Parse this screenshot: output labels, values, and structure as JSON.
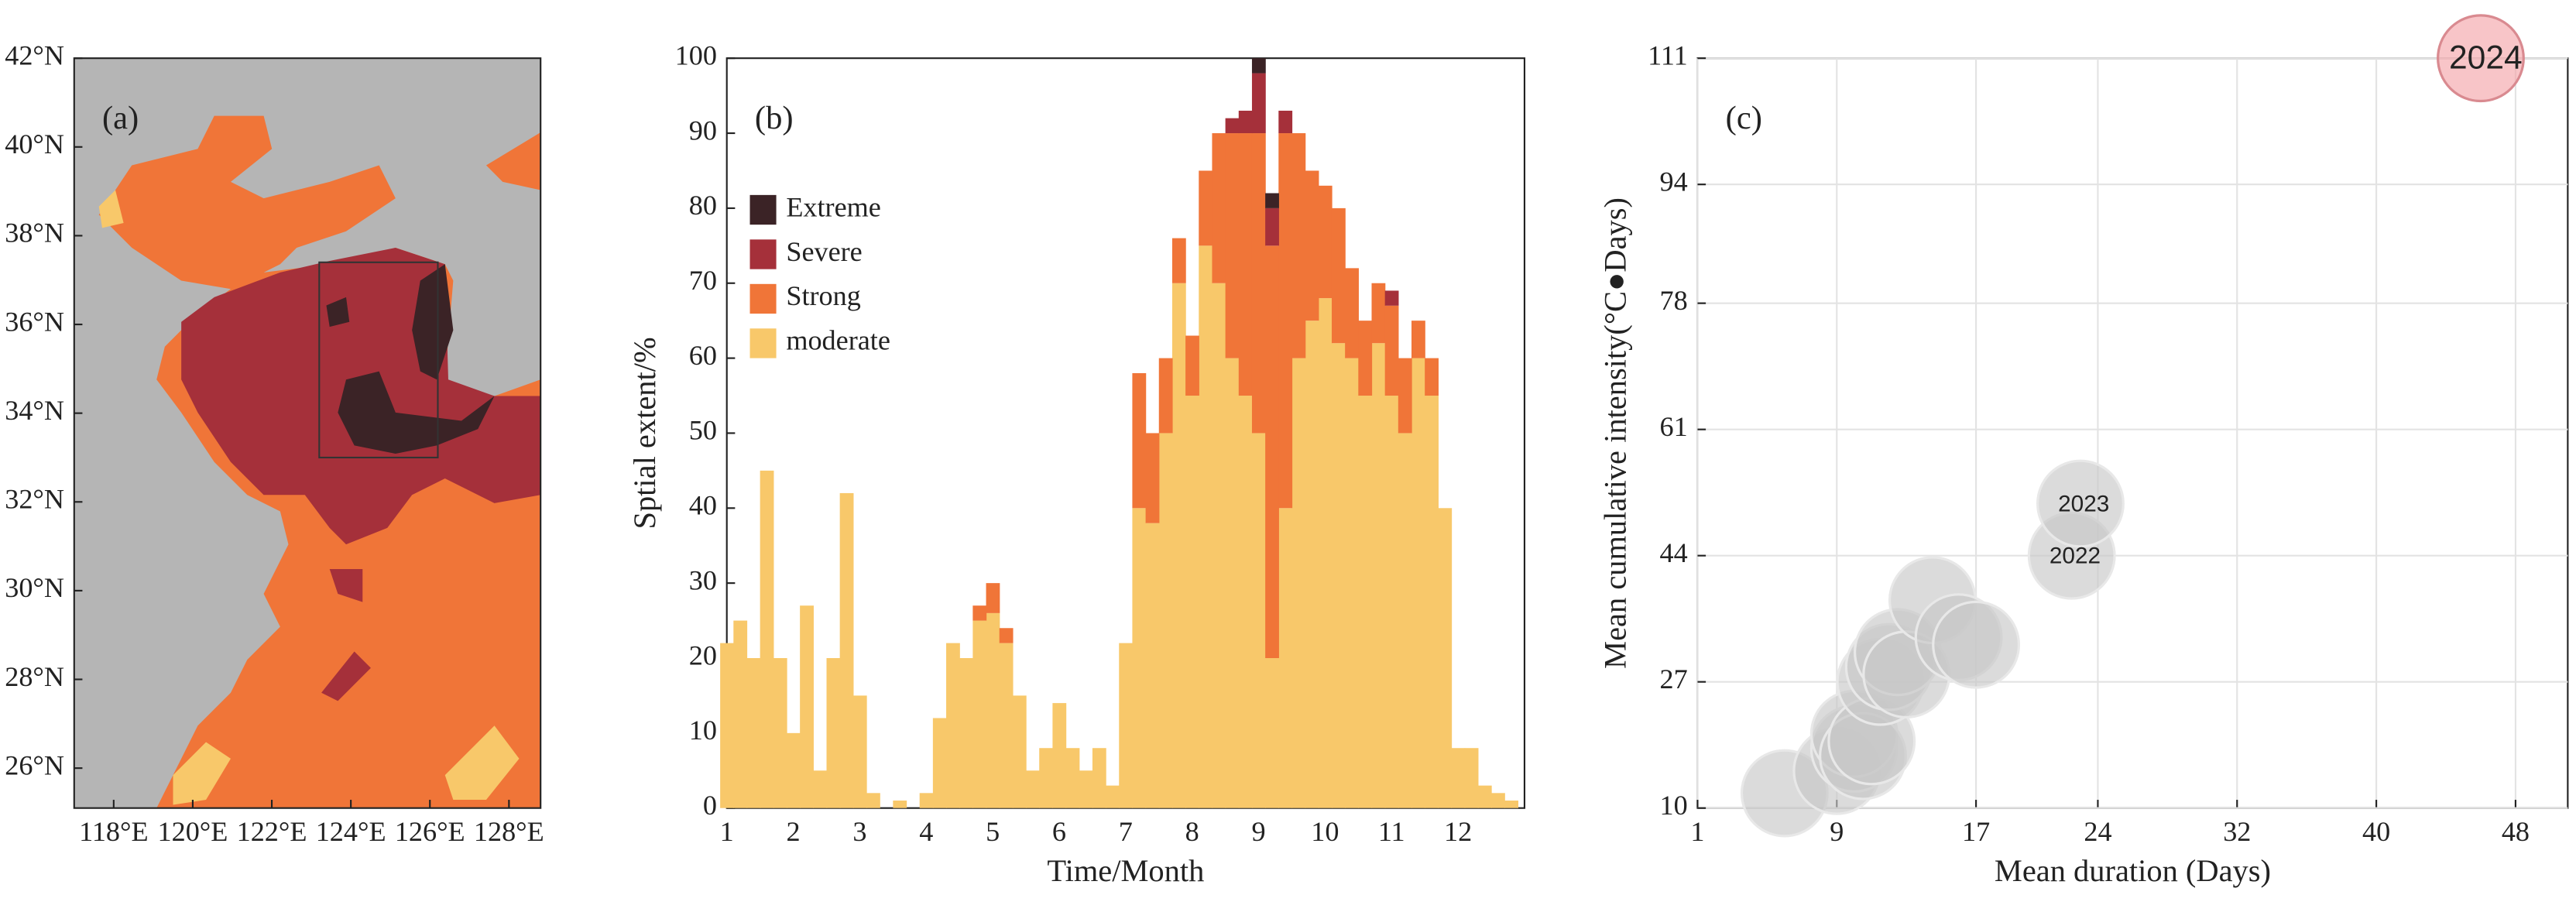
{
  "chart_data": [
    {
      "type": "map",
      "panel_label": "(a)",
      "xlim": [
        117,
        128.8
      ],
      "ylim": [
        25.1,
        42
      ],
      "xticks": [
        {
          "value": 118,
          "label": "118°E"
        },
        {
          "value": 120,
          "label": "120°E"
        },
        {
          "value": 122,
          "label": "122°E"
        },
        {
          "value": 124,
          "label": "124°E"
        },
        {
          "value": 126,
          "label": "126°E"
        },
        {
          "value": 128,
          "label": "128°E"
        }
      ],
      "yticks": [
        {
          "value": 26,
          "label": "26°N"
        },
        {
          "value": 28,
          "label": "28°N"
        },
        {
          "value": 30,
          "label": "30°N"
        },
        {
          "value": 32,
          "label": "32°N"
        },
        {
          "value": 34,
          "label": "34°N"
        },
        {
          "value": 36,
          "label": "36°N"
        },
        {
          "value": 38,
          "label": "38°N"
        },
        {
          "value": 40,
          "label": "40°N"
        },
        {
          "value": 42,
          "label": "42°N"
        }
      ],
      "box": {
        "x": [
          123.2,
          126.2
        ],
        "y": [
          33,
          37.4
        ]
      }
    },
    {
      "type": "bar",
      "panel_label": "(b)",
      "stacked": true,
      "xlabel": "Time/Month",
      "ylabel": "Sptial extent/%",
      "x": [
        1.0,
        1.2,
        1.4,
        1.6,
        1.8,
        2.0,
        2.2,
        2.4,
        2.6,
        2.8,
        3.0,
        3.2,
        3.4,
        3.6,
        3.8,
        4.0,
        4.2,
        4.4,
        4.6,
        4.8,
        5.0,
        5.2,
        5.4,
        5.6,
        5.8,
        6.0,
        6.2,
        6.4,
        6.6,
        6.8,
        7.0,
        7.2,
        7.4,
        7.6,
        7.8,
        8.0,
        8.2,
        8.4,
        8.6,
        8.8,
        9.0,
        9.2,
        9.4,
        9.6,
        9.8,
        10.0,
        10.2,
        10.4,
        10.6,
        10.8,
        11.0,
        11.2,
        11.4,
        11.6,
        11.8,
        12.0,
        12.2,
        12.4,
        12.6,
        12.8
      ],
      "series": [
        {
          "name": "moderate",
          "color": "#f8c86a",
          "values": [
            22,
            25,
            20,
            45,
            20,
            10,
            27,
            5,
            20,
            42,
            15,
            2,
            0,
            1,
            0,
            2,
            12,
            22,
            20,
            25,
            26,
            22,
            15,
            5,
            8,
            14,
            8,
            5,
            8,
            3,
            22,
            40,
            38,
            50,
            70,
            55,
            75,
            70,
            60,
            55,
            50,
            20,
            40,
            60,
            65,
            68,
            62,
            60,
            55,
            62,
            55,
            50,
            60,
            55,
            40,
            8,
            8,
            3,
            2,
            1
          ]
        },
        {
          "name": "Strong",
          "color": "#f07538",
          "values": [
            0,
            0,
            0,
            0,
            0,
            0,
            0,
            0,
            0,
            0,
            0,
            0,
            0,
            0,
            0,
            0,
            0,
            0,
            0,
            2,
            4,
            2,
            0,
            0,
            0,
            0,
            0,
            0,
            0,
            0,
            0,
            18,
            12,
            10,
            6,
            8,
            10,
            20,
            30,
            35,
            40,
            55,
            50,
            30,
            20,
            15,
            18,
            12,
            10,
            8,
            12,
            10,
            5,
            5,
            0,
            0,
            0,
            0,
            0,
            0
          ]
        },
        {
          "name": "Severe",
          "color": "#a5303a",
          "values": [
            0,
            0,
            0,
            0,
            0,
            0,
            0,
            0,
            0,
            0,
            0,
            0,
            0,
            0,
            0,
            0,
            0,
            0,
            0,
            0,
            0,
            0,
            0,
            0,
            0,
            0,
            0,
            0,
            0,
            0,
            0,
            0,
            0,
            0,
            0,
            0,
            0,
            0,
            2,
            3,
            8,
            5,
            3,
            0,
            0,
            0,
            0,
            0,
            0,
            0,
            2,
            0,
            0,
            0,
            0,
            0,
            0,
            0,
            0,
            0
          ]
        },
        {
          "name": "Extreme",
          "color": "#3b2326",
          "values": [
            0,
            0,
            0,
            0,
            0,
            0,
            0,
            0,
            0,
            0,
            0,
            0,
            0,
            0,
            0,
            0,
            0,
            0,
            0,
            0,
            0,
            0,
            0,
            0,
            0,
            0,
            0,
            0,
            0,
            0,
            0,
            0,
            0,
            0,
            0,
            0,
            0,
            0,
            0,
            0,
            2,
            2,
            0,
            0,
            0,
            0,
            0,
            0,
            0,
            0,
            0,
            0,
            0,
            0,
            0,
            0,
            0,
            0,
            0,
            0
          ]
        }
      ],
      "xlim": [
        1,
        13
      ],
      "ylim": [
        0,
        100
      ],
      "xticks": [
        1,
        2,
        3,
        4,
        5,
        6,
        7,
        8,
        9,
        10,
        11,
        12
      ],
      "yticks": [
        0,
        10,
        20,
        30,
        40,
        50,
        60,
        70,
        80,
        90,
        100
      ]
    },
    {
      "type": "scatter",
      "panel_label": "(c)",
      "xlabel": "Mean duration (Days)",
      "ylabel": "Mean cumulative intensity(°C●Days)",
      "grid": true,
      "x": [
        6,
        9,
        10,
        10,
        10.5,
        11,
        11.5,
        12,
        12.5,
        13,
        14.5,
        16,
        17,
        22.5,
        23,
        46
      ],
      "values": [
        12,
        15,
        18,
        20,
        17,
        19,
        27,
        29,
        31,
        28,
        38,
        33,
        32,
        44,
        51,
        111
      ],
      "labels": [
        null,
        null,
        null,
        null,
        null,
        null,
        null,
        null,
        null,
        null,
        null,
        null,
        null,
        "2022",
        "2023",
        "2024"
      ],
      "colors": [
        "#c8c8c8",
        "#c8c8c8",
        "#c8c8c8",
        "#c8c8c8",
        "#c8c8c8",
        "#c8c8c8",
        "#c8c8c8",
        "#c8c8c8",
        "#c8c8c8",
        "#c8c8c8",
        "#c8c8c8",
        "#c8c8c8",
        "#c8c8c8",
        "#c8c8c8",
        "#c8c8c8",
        "#f4a6ab"
      ],
      "xlim": [
        1,
        51
      ],
      "ylim": [
        10,
        111
      ],
      "xticks": [
        1,
        9,
        17,
        24,
        32,
        40,
        48
      ],
      "yticks": [
        10,
        27,
        44,
        61,
        78,
        94,
        111
      ]
    }
  ]
}
